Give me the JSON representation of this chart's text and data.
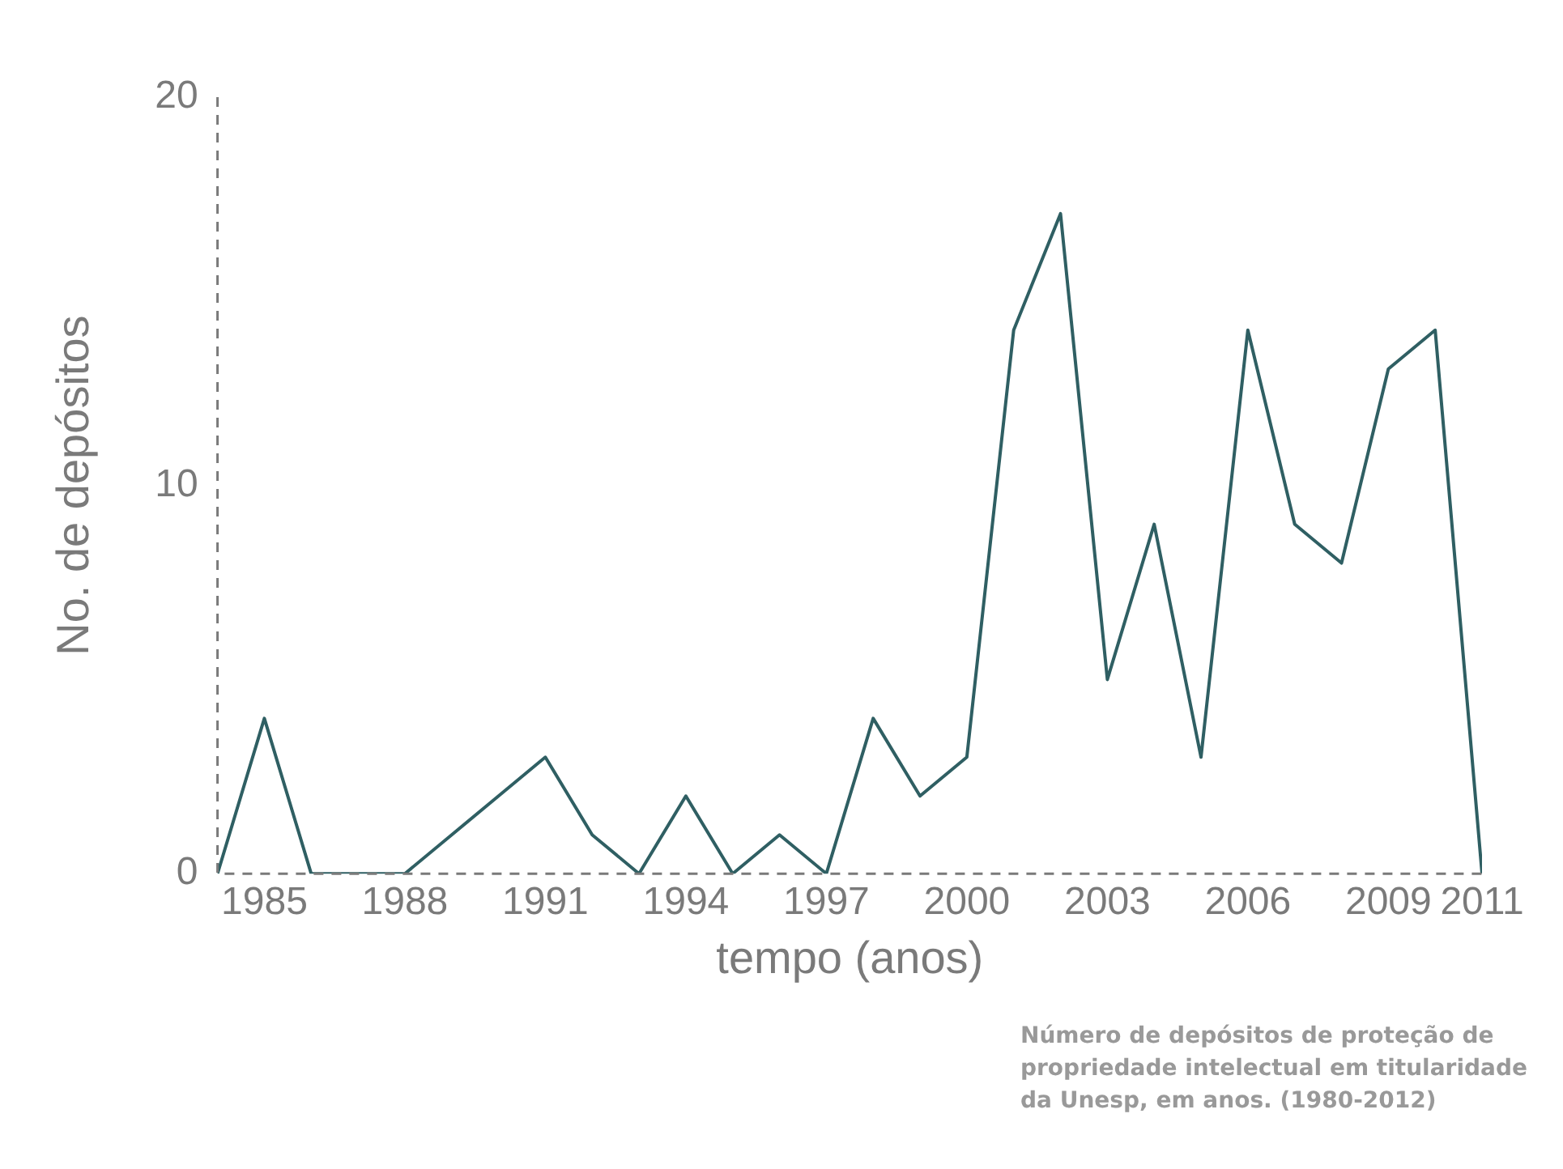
{
  "chart_data": {
    "type": "line",
    "xlabel": "tempo (anos)",
    "ylabel": "No. de depósitos",
    "x": [
      1984,
      1985,
      1986,
      1987,
      1988,
      1989,
      1990,
      1991,
      1992,
      1993,
      1994,
      1995,
      1996,
      1997,
      1998,
      1999,
      2000,
      2001,
      2002,
      2003,
      2004,
      2005,
      2006,
      2007,
      2008,
      2009,
      2010,
      2011
    ],
    "series": [
      {
        "color": "#2f5f63",
        "values": [
          0,
          4,
          0,
          0,
          0,
          1,
          2,
          3,
          1,
          0,
          2,
          0,
          1,
          0,
          4,
          2,
          3,
          14,
          17,
          5,
          9,
          3,
          14,
          9,
          8,
          13,
          14,
          0
        ]
      }
    ],
    "xlim": [
      1984,
      2011
    ],
    "xticks": [
      1985,
      1988,
      1991,
      1994,
      1997,
      2000,
      2003,
      2006,
      2009,
      2011
    ],
    "ylim": [
      0,
      20
    ],
    "yticks": [
      0,
      10,
      20
    ],
    "grid": false,
    "legend": false,
    "marker": "none",
    "line_style": "solid",
    "annotations": [
      "Número de depósitos de proteção de propriedade intelectual em titularidade da Unesp, em anos. (1980-2012)"
    ]
  }
}
